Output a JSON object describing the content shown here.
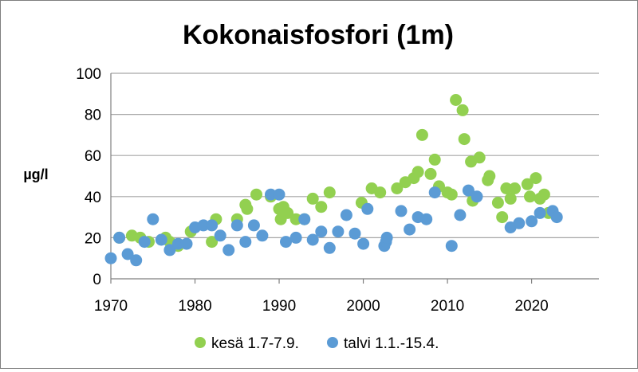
{
  "chart_data": {
    "type": "scatter",
    "title": "Kokonaisfosfori (1m)",
    "xlabel": "",
    "ylabel": "µg/l",
    "xlim": [
      1970,
      2028
    ],
    "ylim": [
      0,
      100
    ],
    "x_ticks": [
      1970,
      1980,
      1990,
      2000,
      2010,
      2020
    ],
    "y_ticks": [
      0,
      20,
      40,
      60,
      80,
      100
    ],
    "grid": "horizontal",
    "legend_position": "bottom",
    "series": [
      {
        "name": "kesä 1.7-7.9.",
        "color": "#92d050",
        "points": [
          [
            1971,
            20
          ],
          [
            1972.5,
            21
          ],
          [
            1973.5,
            20
          ],
          [
            1974.5,
            18
          ],
          [
            1976.5,
            20
          ],
          [
            1977,
            18
          ],
          [
            1978,
            16
          ],
          [
            1979.5,
            23
          ],
          [
            1982,
            18
          ],
          [
            1982.5,
            29
          ],
          [
            1985,
            29
          ],
          [
            1986,
            36
          ],
          [
            1986.2,
            34
          ],
          [
            1987.3,
            41
          ],
          [
            1989,
            40
          ],
          [
            1990,
            34
          ],
          [
            1990.2,
            29
          ],
          [
            1990.5,
            35
          ],
          [
            1991,
            32
          ],
          [
            1992,
            29
          ],
          [
            1993,
            29
          ],
          [
            1994,
            39
          ],
          [
            1995,
            35
          ],
          [
            1996,
            42
          ],
          [
            1999.8,
            37
          ],
          [
            2001,
            44
          ],
          [
            2002,
            42
          ],
          [
            2004,
            44
          ],
          [
            2005,
            47
          ],
          [
            2006,
            49
          ],
          [
            2006.5,
            52
          ],
          [
            2007,
            70
          ],
          [
            2008,
            51
          ],
          [
            2008.5,
            58
          ],
          [
            2009,
            45
          ],
          [
            2010,
            42
          ],
          [
            2010.5,
            41
          ],
          [
            2011,
            87
          ],
          [
            2011.8,
            82
          ],
          [
            2012,
            68
          ],
          [
            2012.8,
            57
          ],
          [
            2013,
            38
          ],
          [
            2013.8,
            59
          ],
          [
            2014.8,
            48
          ],
          [
            2015,
            50
          ],
          [
            2016,
            37
          ],
          [
            2016.5,
            30
          ],
          [
            2017,
            44
          ],
          [
            2017.5,
            39
          ],
          [
            2018,
            44
          ],
          [
            2019.5,
            46
          ],
          [
            2019.8,
            40
          ],
          [
            2020.5,
            49
          ],
          [
            2021,
            39
          ],
          [
            2021.5,
            41
          ],
          [
            2022,
            32
          ]
        ]
      },
      {
        "name": "talvi 1.1.-15.4.",
        "color": "#5b9bd5",
        "points": [
          [
            1970,
            10
          ],
          [
            1971,
            20
          ],
          [
            1972,
            12
          ],
          [
            1973,
            9
          ],
          [
            1974,
            18
          ],
          [
            1975,
            29
          ],
          [
            1976,
            19
          ],
          [
            1977,
            14
          ],
          [
            1978,
            17
          ],
          [
            1979,
            17
          ],
          [
            1980,
            25
          ],
          [
            1981,
            26
          ],
          [
            1982,
            26
          ],
          [
            1983,
            21
          ],
          [
            1984,
            14
          ],
          [
            1985,
            26
          ],
          [
            1986,
            18
          ],
          [
            1987,
            26
          ],
          [
            1988,
            21
          ],
          [
            1989,
            41
          ],
          [
            1990,
            41
          ],
          [
            1990.8,
            18
          ],
          [
            1992,
            20
          ],
          [
            1993,
            29
          ],
          [
            1994,
            19
          ],
          [
            1995,
            23
          ],
          [
            1996,
            15
          ],
          [
            1997,
            23
          ],
          [
            1998,
            31
          ],
          [
            1999,
            22
          ],
          [
            2000,
            17
          ],
          [
            2000.5,
            34
          ],
          [
            2002.5,
            16
          ],
          [
            2002.7,
            18
          ],
          [
            2002.8,
            20
          ],
          [
            2004.5,
            33
          ],
          [
            2005.5,
            24
          ],
          [
            2006.5,
            30
          ],
          [
            2007.5,
            29
          ],
          [
            2008.5,
            42
          ],
          [
            2010.5,
            16
          ],
          [
            2011.5,
            31
          ],
          [
            2012.5,
            43
          ],
          [
            2013.5,
            40
          ],
          [
            2017.5,
            25
          ],
          [
            2018.5,
            27
          ],
          [
            2020,
            28
          ],
          [
            2021,
            32
          ],
          [
            2022.5,
            33
          ],
          [
            2023,
            30
          ]
        ]
      }
    ]
  }
}
